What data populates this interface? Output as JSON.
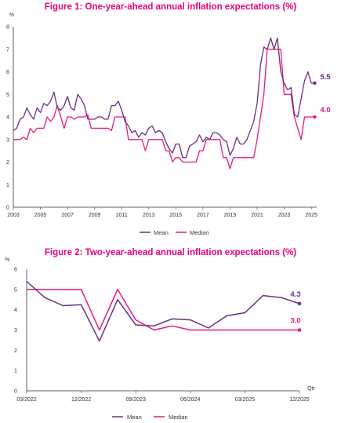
{
  "colors": {
    "mean": "#6b2d86",
    "median": "#e6197d",
    "title": "#e6007e",
    "axis": "#333333"
  },
  "chart_data": [
    {
      "type": "line",
      "title": "Figure 1: One-year-ahead annual inflation expectations (%)",
      "unit_label": "%",
      "xlim": [
        2003,
        2025.4
      ],
      "ylim": [
        0,
        8
      ],
      "x_ticks": [
        "2003",
        "2005",
        "2007",
        "2009",
        "2011",
        "2013",
        "2015",
        "2017",
        "2019",
        "2021",
        "2023",
        "2025"
      ],
      "y_ticks": [
        "0",
        "1",
        "2",
        "3",
        "4",
        "5",
        "6",
        "7",
        "8"
      ],
      "grid": false,
      "legend_position": "bottom-center",
      "end_labels": {
        "mean": "5.5",
        "median": "4.0"
      },
      "series": [
        {
          "name": "Mean",
          "x": [
            2003.0,
            2003.25,
            2003.5,
            2003.75,
            2004.0,
            2004.25,
            2004.5,
            2004.75,
            2005.0,
            2005.25,
            2005.5,
            2005.75,
            2006.0,
            2006.25,
            2006.5,
            2006.75,
            2007.0,
            2007.25,
            2007.5,
            2007.75,
            2008.0,
            2008.25,
            2008.5,
            2008.75,
            2009.0,
            2009.25,
            2009.5,
            2009.75,
            2010.0,
            2010.25,
            2010.5,
            2010.75,
            2011.0,
            2011.25,
            2011.5,
            2011.75,
            2012.0,
            2012.25,
            2012.5,
            2012.75,
            2013.0,
            2013.25,
            2013.5,
            2013.75,
            2014.0,
            2014.25,
            2014.5,
            2014.75,
            2015.0,
            2015.25,
            2015.5,
            2015.75,
            2016.0,
            2016.25,
            2016.5,
            2016.75,
            2017.0,
            2017.25,
            2017.5,
            2017.75,
            2018.0,
            2018.25,
            2018.5,
            2018.75,
            2019.0,
            2019.25,
            2019.5,
            2019.75,
            2020.0,
            2020.25,
            2020.5,
            2020.75,
            2021.0,
            2021.25,
            2021.5,
            2021.75,
            2022.0,
            2022.25,
            2022.5,
            2022.75,
            2023.0,
            2023.25,
            2023.5,
            2023.75,
            2024.0,
            2024.25,
            2024.5,
            2024.75,
            2025.0,
            2025.25
          ],
          "values": [
            3.4,
            3.5,
            3.9,
            4.0,
            4.4,
            4.1,
            3.9,
            4.4,
            4.2,
            4.6,
            4.5,
            4.7,
            5.1,
            4.4,
            4.3,
            4.5,
            4.9,
            4.4,
            4.3,
            5.0,
            4.8,
            4.5,
            3.9,
            3.9,
            3.9,
            4.0,
            4.0,
            3.9,
            3.9,
            4.5,
            4.5,
            4.7,
            4.3,
            3.8,
            3.6,
            3.3,
            3.4,
            3.1,
            3.3,
            3.2,
            3.5,
            3.6,
            3.3,
            3.4,
            3.3,
            2.9,
            2.6,
            2.4,
            2.8,
            2.8,
            2.2,
            2.2,
            2.7,
            2.8,
            2.9,
            3.2,
            2.9,
            3.1,
            3.0,
            3.3,
            3.3,
            3.2,
            3.0,
            2.9,
            2.3,
            2.6,
            3.1,
            2.8,
            2.8,
            3.0,
            3.4,
            3.8,
            4.6,
            6.3,
            7.1,
            7.0,
            7.5,
            7.0,
            7.5,
            6.0,
            5.5,
            5.2,
            5.3,
            4.1,
            4.0,
            4.8,
            5.6,
            6.0,
            5.5,
            5.5
          ]
        },
        {
          "name": "Median",
          "x": [
            2003.0,
            2003.25,
            2003.5,
            2003.75,
            2004.0,
            2004.25,
            2004.5,
            2004.75,
            2005.0,
            2005.25,
            2005.5,
            2005.75,
            2006.0,
            2006.25,
            2006.5,
            2006.75,
            2007.0,
            2007.25,
            2007.5,
            2007.75,
            2008.0,
            2008.25,
            2008.5,
            2008.75,
            2009.0,
            2009.25,
            2009.5,
            2009.75,
            2010.0,
            2010.25,
            2010.5,
            2010.75,
            2011.0,
            2011.25,
            2011.5,
            2011.75,
            2012.0,
            2012.25,
            2012.5,
            2012.75,
            2013.0,
            2013.25,
            2013.5,
            2013.75,
            2014.0,
            2014.25,
            2014.5,
            2014.75,
            2015.0,
            2015.25,
            2015.5,
            2015.75,
            2016.0,
            2016.25,
            2016.5,
            2016.75,
            2017.0,
            2017.25,
            2017.5,
            2017.75,
            2018.0,
            2018.25,
            2018.5,
            2018.75,
            2019.0,
            2019.25,
            2019.5,
            2019.75,
            2020.0,
            2020.25,
            2020.5,
            2020.75,
            2021.0,
            2021.25,
            2021.5,
            2021.75,
            2022.0,
            2022.25,
            2022.5,
            2022.75,
            2023.0,
            2023.25,
            2023.5,
            2023.75,
            2024.0,
            2024.25,
            2024.5,
            2024.75,
            2025.0,
            2025.25
          ],
          "values": [
            3.0,
            3.0,
            3.0,
            3.1,
            3.0,
            3.5,
            3.3,
            3.5,
            3.5,
            3.5,
            4.0,
            3.8,
            4.0,
            4.5,
            4.0,
            3.5,
            4.0,
            4.0,
            3.9,
            4.0,
            4.0,
            4.0,
            4.1,
            3.5,
            3.5,
            3.5,
            3.5,
            3.5,
            3.5,
            3.4,
            4.0,
            4.0,
            4.0,
            4.0,
            3.0,
            3.0,
            3.0,
            3.0,
            3.0,
            2.5,
            3.0,
            3.0,
            3.0,
            3.0,
            3.0,
            2.5,
            2.5,
            2.0,
            2.2,
            2.2,
            2.0,
            2.0,
            2.0,
            2.0,
            2.0,
            2.5,
            2.5,
            3.0,
            3.0,
            3.0,
            3.0,
            3.0,
            2.2,
            2.2,
            1.7,
            2.2,
            2.2,
            2.2,
            2.2,
            2.2,
            2.2,
            2.2,
            3.0,
            4.0,
            5.0,
            7.0,
            7.0,
            7.0,
            7.0,
            7.0,
            5.0,
            5.0,
            5.0,
            4.0,
            3.5,
            3.0,
            4.0,
            4.0,
            4.0,
            4.0
          ]
        }
      ]
    },
    {
      "type": "line",
      "title": "Figure 2: Two-year-ahead annual inflation expectations (%)",
      "unit_label": "%",
      "x_axis_label": "Qtr",
      "categories": [
        "03/2022",
        "06/2022",
        "09/2022",
        "12/2022",
        "03/2023",
        "06/2023",
        "09/2023",
        "12/2023",
        "03/2024",
        "06/2024",
        "09/2024",
        "12/2024",
        "03/2025",
        "06/2025",
        "09/2025",
        "12/2025"
      ],
      "x_ticks": [
        "03/2022",
        "12/2022",
        "09/2023",
        "06/2024",
        "03/2025",
        "12/2025"
      ],
      "y_ticks": [
        "0",
        "1",
        "2",
        "3",
        "4",
        "5",
        "6"
      ],
      "ylim": [
        0,
        6
      ],
      "grid": false,
      "legend_position": "bottom-center",
      "end_labels": {
        "mean": "4.3",
        "median": "3.0"
      },
      "series": [
        {
          "name": "Mean",
          "values": [
            5.4,
            4.6,
            4.2,
            4.25,
            2.45,
            4.5,
            3.25,
            3.2,
            3.55,
            3.5,
            3.1,
            3.7,
            3.85,
            4.7,
            4.6,
            4.3
          ]
        },
        {
          "name": "Median",
          "values": [
            5.0,
            5.0,
            5.0,
            5.0,
            3.0,
            5.0,
            3.5,
            3.0,
            3.2,
            3.0,
            3.0,
            3.0,
            3.0,
            3.0,
            3.0,
            3.0
          ]
        }
      ]
    }
  ]
}
